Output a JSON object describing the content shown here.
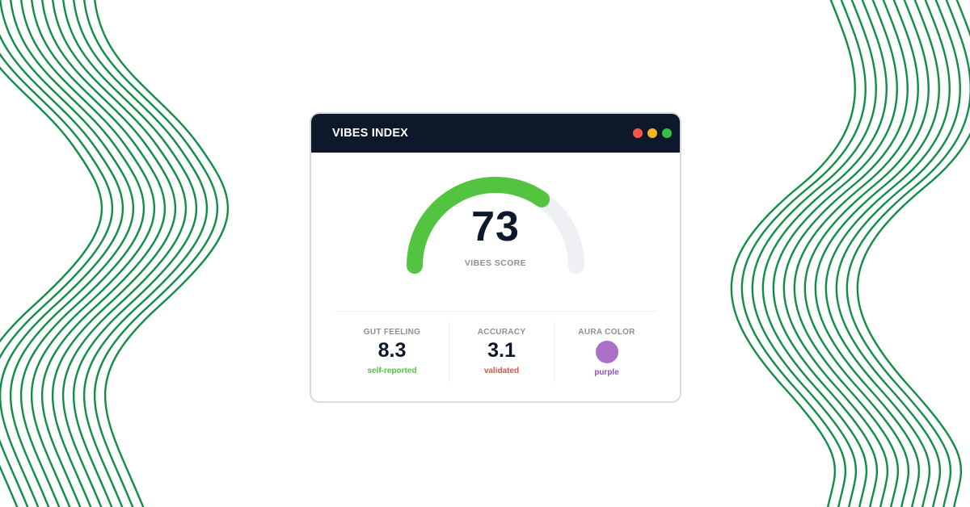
{
  "window": {
    "title": "VIBES INDEX",
    "controls": [
      {
        "name": "close",
        "color": "#f4584f"
      },
      {
        "name": "minimize",
        "color": "#f6b529"
      },
      {
        "name": "maximize",
        "color": "#34c244"
      }
    ]
  },
  "gauge": {
    "value": "73",
    "fraction": 0.73,
    "label": "VIBES SCORE",
    "fill_color": "#52c43f",
    "track_color": "#eef0f3"
  },
  "stats": [
    {
      "label": "GUT FEELING",
      "value": "8.3",
      "note": "self-reported",
      "note_color": "#52c43f"
    },
    {
      "label": "ACCURACY",
      "value": "3.1",
      "note": "validated",
      "note_color": "#ef4d48"
    },
    {
      "label": "AURA COLOR",
      "swatch_color": "#aa6fc8",
      "note": "purple",
      "note_color": "#9b4fbf"
    }
  ],
  "theme": {
    "wave_color": "#108f44",
    "titlebar_color": "#0d182a"
  }
}
